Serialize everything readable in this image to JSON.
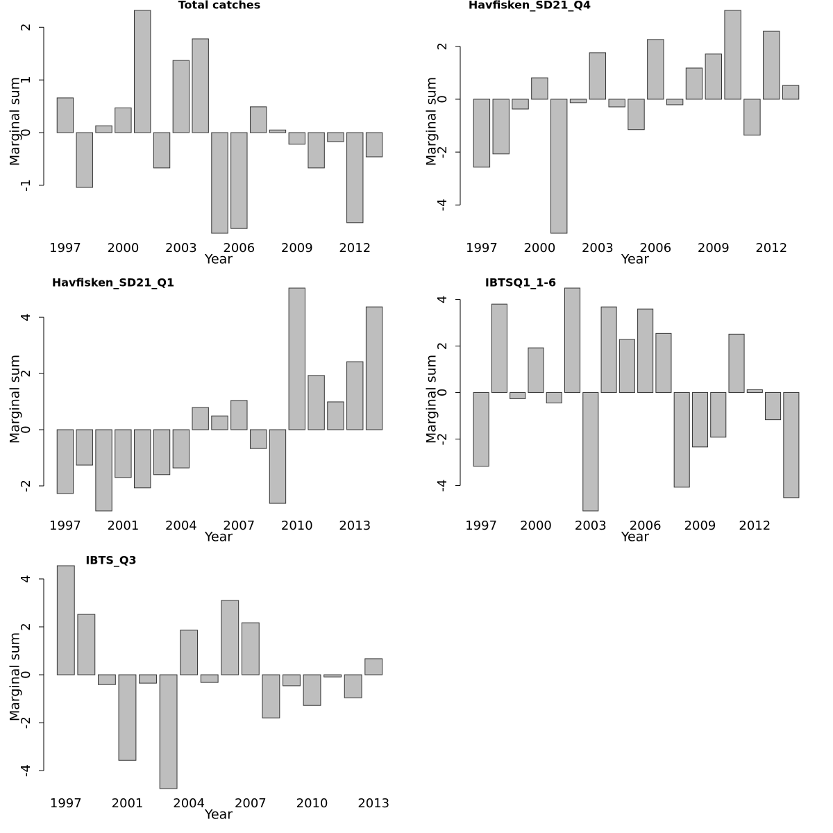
{
  "chart_data": [
    {
      "type": "bar",
      "title": "Total catches",
      "xlabel": "Year",
      "ylabel": "Marginal sum",
      "categories": [
        "1997",
        null,
        null,
        "2000",
        null,
        null,
        "2003",
        null,
        null,
        "2006",
        null,
        null,
        "2009",
        null,
        null,
        "2012",
        null
      ],
      "values": [
        0.66,
        -1.04,
        0.13,
        0.47,
        2.32,
        -0.67,
        1.37,
        1.78,
        -1.91,
        -1.82,
        0.49,
        0.05,
        -0.22,
        -0.67,
        -0.17,
        -1.71,
        -0.46
      ],
      "color": "#bebebe",
      "ylim": [
        -1.91,
        2.32
      ],
      "yticks": [
        -1,
        0,
        1,
        2
      ]
    },
    {
      "type": "bar",
      "title": "Havfisken_SD21_Q4",
      "xlabel": "Year",
      "ylabel": "Marginal sum",
      "categories": [
        "1997",
        null,
        null,
        "2000",
        null,
        null,
        "2003",
        null,
        null,
        "2006",
        null,
        null,
        "2009",
        null,
        null,
        "2012",
        null
      ],
      "values": [
        -2.57,
        -2.07,
        -0.37,
        0.81,
        -5.07,
        -0.13,
        1.76,
        -0.29,
        -1.15,
        2.26,
        -0.21,
        1.18,
        1.71,
        3.36,
        -1.36,
        2.57,
        0.52
      ],
      "color": "#bebebe",
      "ylim": [
        -5.07,
        3.36
      ],
      "yticks": [
        -4,
        -2,
        0,
        2
      ]
    },
    {
      "type": "bar",
      "title": "Havfisken_SD21_Q1",
      "xlabel": "Year",
      "ylabel": "Marginal sum",
      "categories": [
        "1997",
        null,
        null,
        "2001",
        null,
        null,
        "2004",
        null,
        null,
        "2007",
        null,
        null,
        "2010",
        null,
        null,
        "2013",
        null
      ],
      "values": [
        -2.27,
        -1.26,
        -2.89,
        -1.7,
        -2.07,
        -1.6,
        -1.36,
        0.79,
        0.49,
        1.04,
        -0.67,
        -2.62,
        5.04,
        1.93,
        0.99,
        2.42,
        4.37
      ],
      "color": "#bebebe",
      "ylim": [
        -2.89,
        5.04
      ],
      "yticks": [
        -2,
        0,
        2,
        4
      ]
    },
    {
      "type": "bar",
      "title": "IBTSQ1_1-6",
      "xlabel": "Year",
      "ylabel": "Marginal sum",
      "categories": [
        "1997",
        null,
        null,
        "2000",
        null,
        null,
        "2003",
        null,
        null,
        "2006",
        null,
        null,
        "2009",
        null,
        null,
        "2012",
        null,
        null
      ],
      "values": [
        -3.17,
        3.8,
        -0.27,
        1.92,
        -0.45,
        4.49,
        -5.09,
        3.68,
        2.28,
        3.59,
        2.54,
        -4.07,
        -2.34,
        -1.92,
        2.51,
        0.12,
        -1.17,
        -4.52
      ],
      "color": "#bebebe",
      "ylim": [
        -5.09,
        4.49
      ],
      "yticks": [
        -4,
        -2,
        0,
        2,
        4
      ]
    },
    {
      "type": "bar",
      "title": "IBTS_Q3",
      "xlabel": "Year",
      "ylabel": "Marginal sum",
      "categories": [
        "1997",
        null,
        null,
        "2001",
        null,
        null,
        "2004",
        null,
        null,
        "2007",
        null,
        null,
        "2010",
        null,
        null,
        "2013"
      ],
      "values": [
        4.55,
        2.52,
        -0.41,
        -3.57,
        -0.35,
        -4.75,
        1.86,
        -0.32,
        3.1,
        2.17,
        -1.8,
        -0.46,
        -1.28,
        -0.09,
        -0.96,
        0.67
      ],
      "color": "#bebebe",
      "ylim": [
        -4.75,
        4.55
      ],
      "yticks": [
        -4,
        -2,
        0,
        2,
        4
      ]
    }
  ]
}
